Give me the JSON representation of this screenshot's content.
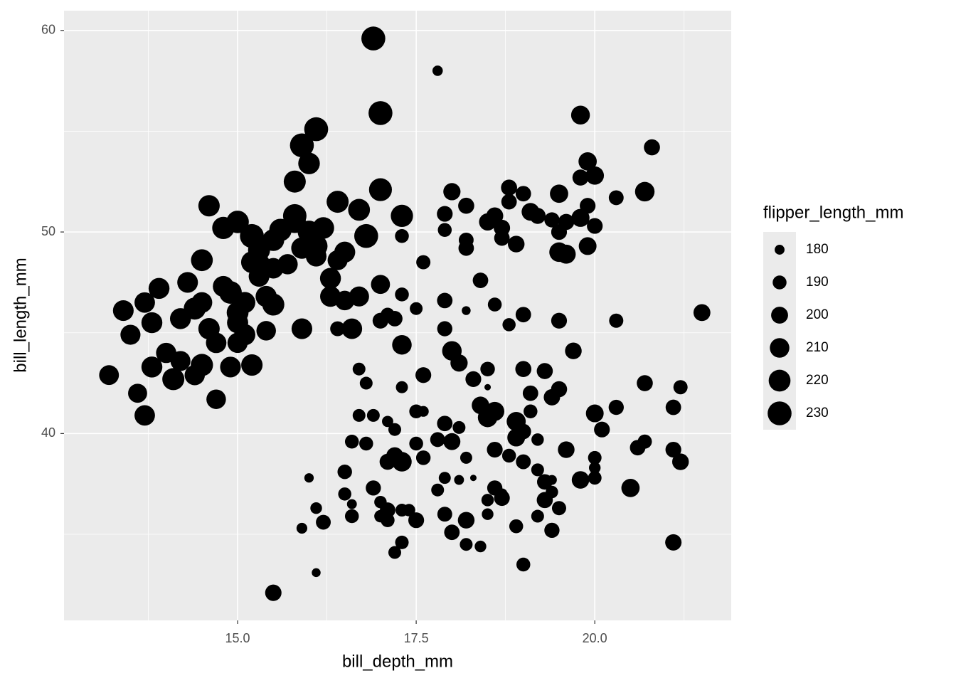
{
  "chart_data": {
    "type": "scatter",
    "x_label": "bill_depth_mm",
    "y_label": "bill_length_mm",
    "size_label": "flipper_length_mm",
    "color": "#000000",
    "grid": true,
    "xlim": [
      12.57,
      21.91
    ],
    "ylim": [
      30.73,
      60.98
    ],
    "xticks": [
      {
        "value": 15,
        "label": "15.0"
      },
      17.5,
      {
        "value": 20,
        "label": "20.0"
      }
    ],
    "yticks": [
      40,
      50,
      60
    ],
    "size_legend": [
      180,
      190,
      200,
      210,
      220,
      230
    ],
    "x": [
      13.2,
      13.4,
      13.5,
      13.6,
      13.7,
      13.8,
      13.9,
      13.8,
      14.0,
      14.1,
      13.7,
      14.2,
      14.2,
      14.3,
      14.4,
      14.5,
      14.5,
      14.4,
      14.5,
      14.6,
      14.6,
      14.8,
      14.8,
      14.9,
      15.0,
      15.0,
      15.0,
      15.2,
      15.3,
      15.1,
      15.3,
      15.4,
      15.5,
      15.5,
      15.7,
      15.8,
      15.9,
      16.0,
      15.8,
      16.1,
      16.2,
      16.3,
      16.4,
      15.0,
      15.2,
      15.6,
      15.5,
      15.8,
      15.9,
      16.0,
      16.1,
      16.4,
      16.5,
      16.8,
      16.6,
      16.5,
      16.7,
      17.0,
      15.2,
      15.1,
      15.4,
      15.9,
      16.3,
      14.7,
      14.7,
      14.9,
      15.3,
      16.1,
      16.9,
      17.0,
      17.0,
      17.3,
      16.7,
      17.8,
      19.8,
      20.8,
      19.9,
      19.8,
      20.0,
      20.7,
      20.3,
      19.5,
      18.8,
      19.0,
      18.0,
      17.9,
      18.2,
      18.5,
      18.6,
      18.8,
      19.1,
      19.2,
      19.4,
      19.5,
      19.6,
      19.8,
      20.0,
      19.9,
      19.5,
      19.6,
      19.9,
      18.7,
      18.9,
      18.7,
      18.2,
      18.2,
      17.9,
      17.3,
      17.6,
      18.4,
      17.9,
      17.3,
      18.6,
      19.5,
      20.3,
      21.5,
      17.9,
      17.2,
      17.1,
      18.2,
      17.0,
      16.4,
      17.5,
      18.8,
      19.0,
      19.7,
      17.3,
      18.0,
      18.1,
      19.0,
      19.3,
      18.5,
      18.3,
      17.6,
      16.7,
      16.8,
      17.3,
      18.5,
      19.1,
      19.5,
      19.4,
      20.7,
      21.2,
      20.0,
      20.1,
      20.3,
      21.1,
      18.6,
      18.4,
      18.5,
      17.9,
      17.5,
      17.6,
      16.7,
      16.9,
      17.1,
      17.2,
      17.8,
      18.0,
      18.1,
      18.9,
      19.1,
      18.9,
      19.0,
      18.8,
      18.6,
      18.2,
      17.9,
      17.6,
      17.5,
      17.1,
      17.2,
      17.3,
      16.8,
      16.6,
      16.5,
      16.9,
      17.0,
      17.1,
      17.3,
      17.0,
      16.5,
      16.6,
      16.6,
      16.1,
      16.2,
      15.9,
      16.0,
      16.1,
      15.5,
      17.2,
      17.3,
      17.5,
      17.8,
      18.0,
      17.9,
      18.2,
      18.2,
      18.1,
      18.3,
      18.5,
      18.6,
      18.7,
      18.5,
      18.4,
      18.9,
      19.0,
      18.7,
      19.0,
      19.2,
      19.3,
      19.4,
      19.3,
      19.4,
      19.2,
      19.5,
      19.4,
      19.6,
      19.8,
      20.0,
      20.0,
      20.0,
      20.5,
      20.6,
      20.7,
      21.1,
      21.2,
      21.1,
      19.5,
      19.2,
      17.1,
      17.4
    ],
    "values": [
      42.9,
      46.1,
      44.9,
      42.0,
      46.5,
      43.3,
      47.2,
      45.5,
      44.0,
      42.7,
      40.9,
      45.7,
      43.6,
      47.5,
      46.2,
      48.6,
      43.4,
      42.9,
      46.5,
      51.3,
      45.2,
      50.2,
      47.3,
      43.3,
      45.5,
      46.0,
      44.5,
      48.5,
      49.1,
      46.5,
      47.8,
      45.1,
      49.6,
      46.4,
      48.4,
      50.5,
      49.2,
      50.0,
      50.8,
      49.3,
      50.2,
      47.7,
      48.6,
      50.5,
      49.8,
      50.1,
      48.2,
      52.5,
      54.3,
      53.4,
      55.1,
      51.5,
      49.0,
      49.8,
      45.2,
      46.6,
      46.8,
      47.4,
      43.4,
      44.9,
      46.8,
      45.2,
      46.8,
      41.7,
      44.5,
      47.0,
      48.4,
      48.8,
      59.6,
      55.9,
      52.1,
      50.8,
      51.1,
      58.0,
      55.8,
      54.2,
      53.5,
      52.7,
      52.8,
      52.0,
      51.7,
      51.9,
      52.2,
      51.9,
      52.0,
      50.9,
      51.3,
      50.5,
      50.8,
      51.5,
      51.0,
      50.8,
      50.6,
      50.0,
      50.5,
      50.7,
      50.3,
      51.3,
      49.0,
      48.9,
      49.3,
      50.2,
      49.4,
      49.7,
      49.6,
      49.2,
      50.1,
      49.8,
      48.5,
      47.6,
      46.6,
      46.9,
      46.4,
      45.6,
      45.6,
      46.0,
      45.2,
      45.7,
      45.9,
      46.1,
      45.6,
      45.2,
      46.2,
      45.4,
      45.9,
      44.1,
      44.4,
      44.1,
      43.5,
      43.2,
      43.1,
      43.2,
      42.7,
      42.9,
      43.2,
      42.5,
      42.3,
      42.3,
      42.0,
      42.2,
      41.8,
      42.5,
      42.3,
      41.0,
      40.2,
      41.3,
      41.3,
      41.1,
      41.4,
      40.8,
      40.5,
      41.1,
      41.1,
      40.9,
      40.9,
      40.6,
      40.2,
      39.7,
      39.6,
      40.3,
      40.6,
      41.1,
      39.8,
      40.1,
      38.9,
      39.2,
      38.8,
      37.8,
      38.8,
      39.5,
      38.6,
      38.9,
      38.6,
      39.5,
      39.6,
      38.1,
      37.3,
      36.6,
      36.2,
      36.2,
      35.9,
      37.0,
      36.5,
      35.9,
      36.3,
      35.6,
      35.3,
      37.8,
      33.1,
      32.1,
      34.1,
      34.6,
      35.7,
      37.2,
      35.1,
      36.0,
      35.7,
      34.5,
      37.7,
      37.8,
      36.7,
      37.3,
      36.8,
      36.0,
      34.4,
      35.4,
      33.5,
      37.0,
      38.6,
      38.2,
      37.6,
      37.7,
      36.7,
      37.1,
      35.9,
      36.3,
      35.2,
      39.2,
      37.7,
      37.8,
      38.3,
      38.8,
      37.3,
      39.3,
      39.6,
      39.2,
      38.6,
      34.6,
      36.3,
      39.7,
      35.7,
      36.2
    ],
    "sizes": [
      211,
      215,
      212,
      208,
      214,
      216,
      216,
      216,
      213,
      221,
      214,
      216,
      212,
      215,
      221,
      220,
      222,
      213,
      215,
      218,
      218,
      222,
      216,
      215,
      217,
      220,
      213,
      219,
      221,
      217,
      215,
      210,
      220,
      221,
      213,
      222,
      218,
      224,
      228,
      224,
      219,
      216,
      212,
      223,
      230,
      223,
      214,
      221,
      230,
      219,
      230,
      221,
      216,
      230,
      214,
      210,
      212,
      208,
      218,
      217,
      217,
      215,
      215,
      210,
      214,
      224,
      222,
      215,
      230,
      230,
      225,
      222,
      220,
      181,
      207,
      197,
      205,
      197,
      205,
      210,
      193,
      205,
      197,
      195,
      201,
      196,
      197,
      201,
      200,
      195,
      203,
      197,
      194,
      196,
      197,
      204,
      196,
      196,
      210,
      208,
      203,
      198,
      199,
      195,
      193,
      195,
      190,
      190,
      191,
      195,
      195,
      190,
      190,
      196,
      191,
      200,
      194,
      195,
      190,
      178,
      196,
      193,
      187,
      188,
      195,
      199,
      210,
      210,
      201,
      197,
      197,
      192,
      196,
      196,
      187,
      187,
      185,
      174,
      195,
      197,
      198,
      197,
      191,
      203,
      196,
      194,
      195,
      208,
      202,
      210,
      195,
      190,
      182,
      187,
      187,
      183,
      187,
      193,
      200,
      187,
      208,
      190,
      203,
      195,
      190,
      196,
      185,
      185,
      192,
      190,
      197,
      200,
      210,
      190,
      190,
      192,
      194,
      186,
      195,
      187,
      186,
      188,
      180,
      190,
      184,
      193,
      182,
      179,
      178,
      198,
      187,
      189,
      196,
      187,
      195,
      193,
      199,
      187,
      180,
      174,
      186,
      194,
      196,
      184,
      184,
      190,
      190,
      183,
      193,
      187,
      195,
      180,
      197,
      186,
      187,
      191,
      194,
      199,
      202,
      189,
      184,
      189,
      205,
      195,
      191,
      196,
      199,
      198,
      190,
      186,
      190,
      186
    ]
  }
}
